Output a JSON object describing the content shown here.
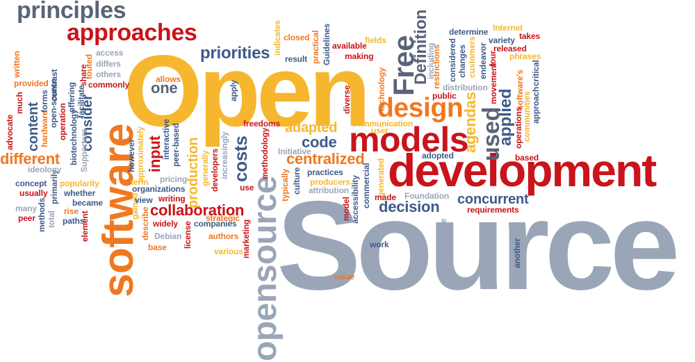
{
  "palette": {
    "gray": "#9aa6b8",
    "darkgray": "#5a6478",
    "blue": "#3e5a8a",
    "red": "#c8141a",
    "orange": "#f07820",
    "yellow": "#f6b72e"
  },
  "words": {
    "open": "Open",
    "source": "Source",
    "development": "development",
    "software": "software",
    "opensource": "opensource",
    "models": "models",
    "design": "design",
    "approaches": "approaches",
    "principles": "principles",
    "free": "Free",
    "priorities": "priorities",
    "collaboration": "collaboration",
    "definition": "Definition",
    "used": "used",
    "applied": "applied",
    "agendas": "agendas",
    "centralized": "centralized",
    "adapted": "adapted",
    "code": "code",
    "costs": "costs",
    "different": "different",
    "consider": "consider",
    "content": "content",
    "one": "one",
    "decision": "decision",
    "concurrent": "concurrent",
    "production": "production",
    "input": "input",
    "commonly": "commonly",
    "access": "access",
    "differs": "differs",
    "others": "others",
    "allows": "allows",
    "result": "result",
    "closed": "closed",
    "indicates": "indicates",
    "practical": "practical",
    "guidelines": "Guidelines",
    "available": "available",
    "making": "making",
    "fields": "fields",
    "technology": "technology",
    "determine": "determine",
    "variety": "variety",
    "internet": "Internet",
    "takes": "takes",
    "released": "released",
    "phrases": "phrases",
    "restrictions": "restrictions",
    "including": "including",
    "considered": "considered",
    "changes": "changes",
    "customers": "customers",
    "endeavor": "endeavor",
    "four": "four",
    "movement": "movement",
    "softwares": "software's",
    "critical": "critical",
    "distribution": "distribution",
    "public": "public",
    "approach": "approach",
    "communities": "communities",
    "operations": "operations",
    "based": "based",
    "communication": "communication",
    "user": "user",
    "diverse": "diverse",
    "freedoms": "freedoms",
    "apply": "apply",
    "methodology": "methodology",
    "initiative": "Initiative",
    "adopted": "adopted",
    "practices": "practices",
    "producers": "producers",
    "attribution": "attribution",
    "typically": "typically",
    "culture": "culture",
    "commercial": "commercial",
    "generated": "generated",
    "accessibility": "accessibility",
    "model": "model",
    "made": "made",
    "foundation": "Foundation",
    "requirements": "requirements",
    "possible": "possible",
    "another": "another",
    "work": "work",
    "value": "value",
    "increasingly": "increasingly",
    "developers": "developers",
    "use": "use",
    "generally": "generally",
    "marketing": "marketing",
    "strategic": "strategic",
    "various": "various",
    "authors": "authors",
    "companies": "companies",
    "license": "license",
    "writing": "writing",
    "widely": "widely",
    "describe": "describe",
    "debian": "Debian",
    "base": "base",
    "gained": "gained",
    "pricing": "pricing",
    "organizations": "organizations",
    "view": "view",
    "term": "term",
    "interactive": "interactive",
    "peer_based": "peer-based",
    "however": "however",
    "approximately": "approximately",
    "whether": "whether",
    "supporters": "Supporters",
    "biotechnology": "biotechnology",
    "facilitate": "facilitate",
    "touted": "touted",
    "share": "share",
    "offering": "offering",
    "operation": "operation",
    "hardware": "hardware",
    "forms": "forms",
    "open_source": "open-source",
    "advocate": "advocate",
    "much": "much",
    "provided": "provided",
    "written": "written",
    "contrast": "contrast",
    "primarily": "primarily",
    "ideology": "ideology",
    "concept": "concept",
    "usually": "usually",
    "popularity": "popularity",
    "rise": "rise",
    "paths": "paths",
    "became": "became",
    "element": "element",
    "many": "many",
    "peer": "peer",
    "total": "total",
    "methods": "methods"
  }
}
